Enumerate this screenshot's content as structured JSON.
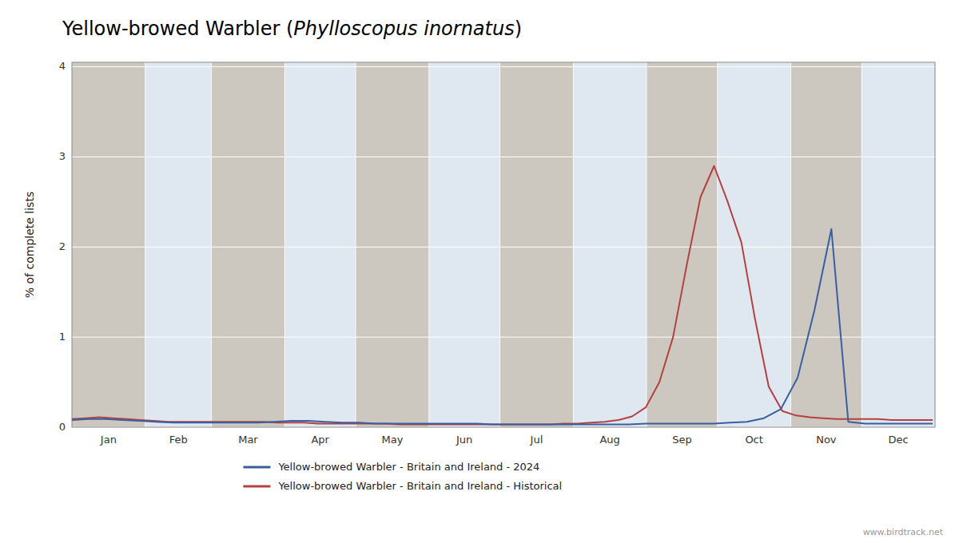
{
  "chart_data": {
    "type": "line",
    "title": "Yellow-browed Warbler (Phylloscopus inornatus)",
    "y_label": "% of complete lists",
    "annotations": [
      "www.birdtrack.net"
    ],
    "xlim": [
      0,
      365
    ],
    "xticks": [
      {
        "value": 15.5,
        "label": "Jan"
      },
      {
        "value": 45,
        "label": "Feb"
      },
      {
        "value": 74.5,
        "label": "Mar"
      },
      {
        "value": 105,
        "label": "Apr"
      },
      {
        "value": 135.5,
        "label": "May"
      },
      {
        "value": 166,
        "label": "Jun"
      },
      {
        "value": 196.5,
        "label": "Jul"
      },
      {
        "value": 227.5,
        "label": "Aug"
      },
      {
        "value": 258,
        "label": "Sep"
      },
      {
        "value": 288.5,
        "label": "Oct"
      },
      {
        "value": 319,
        "label": "Nov"
      },
      {
        "value": 349.5,
        "label": "Dec"
      }
    ],
    "ylim": [
      0,
      4.05
    ],
    "yticks": [
      0,
      1,
      2,
      3,
      4
    ],
    "grid": true,
    "legend": "bottom",
    "bands": [
      {
        "start": 0,
        "end": 31,
        "color": "#ccc8bf"
      },
      {
        "start": 31,
        "end": 59,
        "color": "#dfe8f0"
      },
      {
        "start": 59,
        "end": 90,
        "color": "#ccc8bf"
      },
      {
        "start": 90,
        "end": 120,
        "color": "#dfe8f0"
      },
      {
        "start": 120,
        "end": 151,
        "color": "#ccc8bf"
      },
      {
        "start": 151,
        "end": 181,
        "color": "#dfe8f0"
      },
      {
        "start": 181,
        "end": 212,
        "color": "#ccc8bf"
      },
      {
        "start": 212,
        "end": 243,
        "color": "#dfe8f0"
      },
      {
        "start": 243,
        "end": 273,
        "color": "#ccc8bf"
      },
      {
        "start": 273,
        "end": 304,
        "color": "#dfe8f0"
      },
      {
        "start": 304,
        "end": 334,
        "color": "#ccc8bf"
      },
      {
        "start": 334,
        "end": 365,
        "color": "#dfe8f0"
      }
    ],
    "series": [
      {
        "name": "Yellow-browed Warbler - Britain and Ireland - 2024",
        "color": "#3a5fa0",
        "x": [
          0,
          7.137,
          14.275,
          21.412,
          28.549,
          35.686,
          42.824,
          49.961,
          57.098,
          64.235,
          71.373,
          78.51,
          85.647,
          92.784,
          99.922,
          107.059,
          114.196,
          121.333,
          128.471,
          135.608,
          142.745,
          149.882,
          157.02,
          164.157,
          171.294,
          178.431,
          185.569,
          192.706,
          199.843,
          206.98,
          214.118,
          221.255,
          228.392,
          235.529,
          242.667,
          249.804,
          256.941,
          264.078,
          271.216,
          278.353,
          285.49,
          292.627,
          299.765,
          306.902,
          314.039,
          321.176,
          328.314,
          335.451,
          342.588,
          349.725,
          356.863,
          364
        ],
        "values": [
          0.08,
          0.09,
          0.09,
          0.08,
          0.07,
          0.06,
          0.05,
          0.05,
          0.05,
          0.05,
          0.05,
          0.05,
          0.06,
          0.07,
          0.07,
          0.06,
          0.05,
          0.05,
          0.04,
          0.04,
          0.04,
          0.04,
          0.04,
          0.04,
          0.04,
          0.03,
          0.03,
          0.03,
          0.03,
          0.03,
          0.03,
          0.03,
          0.03,
          0.03,
          0.04,
          0.04,
          0.04,
          0.04,
          0.04,
          0.05,
          0.06,
          0.1,
          0.2,
          0.55,
          1.3,
          2.2,
          0.06,
          0.04,
          0.04,
          0.04,
          0.04,
          0.04
        ]
      },
      {
        "name": "Yellow-browed Warbler - Britain and Ireland - Historical",
        "color": "#b54040",
        "x": [
          0,
          5.778,
          11.556,
          17.333,
          23.111,
          28.889,
          34.667,
          40.444,
          46.222,
          52,
          57.778,
          63.556,
          69.333,
          75.111,
          80.889,
          86.667,
          92.444,
          98.222,
          104,
          109.778,
          115.556,
          121.333,
          127.111,
          132.889,
          138.667,
          144.444,
          150.222,
          156,
          161.778,
          167.556,
          173.333,
          179.111,
          184.889,
          190.667,
          196.444,
          202.222,
          208,
          213.778,
          219.556,
          225.333,
          231.111,
          236.889,
          242.667,
          248.444,
          254.222,
          260,
          265.778,
          271.556,
          277.333,
          283.111,
          288.889,
          294.667,
          300.444,
          306.222,
          312,
          317.778,
          323.556,
          329.333,
          335.111,
          340.889,
          346.667,
          352.444,
          358.222,
          364
        ],
        "values": [
          0.09,
          0.1,
          0.11,
          0.1,
          0.09,
          0.08,
          0.07,
          0.06,
          0.06,
          0.06,
          0.06,
          0.06,
          0.06,
          0.06,
          0.06,
          0.05,
          0.05,
          0.05,
          0.04,
          0.04,
          0.04,
          0.04,
          0.04,
          0.04,
          0.03,
          0.03,
          0.03,
          0.03,
          0.03,
          0.03,
          0.03,
          0.03,
          0.03,
          0.03,
          0.03,
          0.03,
          0.04,
          0.04,
          0.05,
          0.06,
          0.08,
          0.12,
          0.22,
          0.5,
          1.0,
          1.8,
          2.55,
          2.9,
          2.5,
          2.05,
          1.2,
          0.45,
          0.18,
          0.13,
          0.11,
          0.1,
          0.09,
          0.09,
          0.09,
          0.09,
          0.08,
          0.08,
          0.08,
          0.08
        ]
      }
    ]
  }
}
